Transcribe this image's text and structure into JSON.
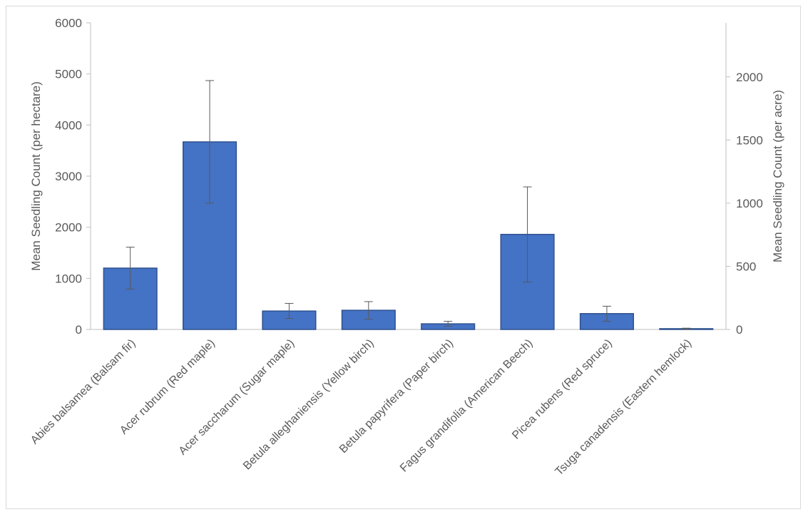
{
  "chart_data": {
    "type": "bar",
    "title": "",
    "categories": [
      "Abies balsamea (Balsam fir)",
      "Acer rubrum (Red maple)",
      "Acer saccharum (Sugar maple)",
      "Betula alleghaniensis (Yellow birch)",
      "Betula papyrifera (Paper birch)",
      "Fagus grandifolia (American Beech)",
      "Picea rubens (Red spruce)",
      "Tsuga canadensis (Eastern hemlock)"
    ],
    "values": [
      1200,
      3670,
      360,
      375,
      110,
      1860,
      310,
      15
    ],
    "error_low": [
      790,
      2470,
      215,
      200,
      65,
      930,
      160,
      5
    ],
    "error_high": [
      1610,
      4870,
      510,
      545,
      160,
      2790,
      455,
      25
    ],
    "ylabel": "Mean Seedling Count (per hectare)",
    "ylim": [
      0,
      6000
    ],
    "yticks": [
      0,
      1000,
      2000,
      3000,
      4000,
      5000,
      6000
    ],
    "y2label": "Mean Seedling Count (per acre)",
    "y2lim": [
      0,
      2428
    ],
    "y2ticks": [
      0,
      500,
      1000,
      1500,
      2000
    ],
    "grid": false,
    "bar_color": "#4472c4",
    "bar_edge_color": "#2f528f"
  }
}
